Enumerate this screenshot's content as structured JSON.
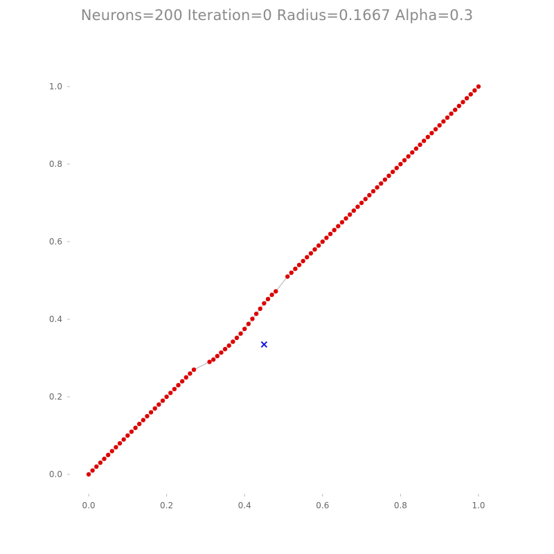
{
  "chart_data": {
    "type": "line",
    "title": "Neurons=200 Iteration=0 Radius=0.1667 Alpha=0.3",
    "xlabel": "",
    "ylabel": "",
    "xlim": [
      -0.05,
      1.05
    ],
    "ylim": [
      -0.05,
      1.05
    ],
    "xticks": [
      0.0,
      0.2,
      0.4,
      0.6,
      0.8,
      1.0
    ],
    "xtick_labels": [
      "0.0",
      "0.2",
      "0.4",
      "0.6",
      "0.8",
      "1.0"
    ],
    "yticks": [
      0.0,
      0.2,
      0.4,
      0.6,
      0.8,
      1.0
    ],
    "ytick_labels": [
      "0.0",
      "0.2",
      "0.4",
      "0.6",
      "0.8",
      "1.0"
    ],
    "grid": false,
    "series": [
      {
        "kind": "neurons",
        "color": "#dd0000",
        "line_color": "#bbbbbb",
        "points": [
          [
            0.0,
            0.0
          ],
          [
            0.01,
            0.01
          ],
          [
            0.02,
            0.02
          ],
          [
            0.03,
            0.03
          ],
          [
            0.04,
            0.04
          ],
          [
            0.05,
            0.05
          ],
          [
            0.06,
            0.06
          ],
          [
            0.07,
            0.07
          ],
          [
            0.08,
            0.08
          ],
          [
            0.09,
            0.09
          ],
          [
            0.1,
            0.1
          ],
          [
            0.11,
            0.11
          ],
          [
            0.12,
            0.12
          ],
          [
            0.13,
            0.13
          ],
          [
            0.14,
            0.14
          ],
          [
            0.15,
            0.15
          ],
          [
            0.16,
            0.16
          ],
          [
            0.17,
            0.17
          ],
          [
            0.18,
            0.18
          ],
          [
            0.19,
            0.19
          ],
          [
            0.2,
            0.2
          ],
          [
            0.21,
            0.21
          ],
          [
            0.22,
            0.22
          ],
          [
            0.23,
            0.23
          ],
          [
            0.24,
            0.24
          ],
          [
            0.25,
            0.25
          ],
          [
            0.26,
            0.26
          ],
          [
            0.27,
            0.27
          ],
          [
            0.31,
            0.29
          ],
          [
            0.32,
            0.296
          ],
          [
            0.33,
            0.305
          ],
          [
            0.34,
            0.314
          ],
          [
            0.35,
            0.323
          ],
          [
            0.36,
            0.332
          ],
          [
            0.37,
            0.342
          ],
          [
            0.38,
            0.352
          ],
          [
            0.39,
            0.363
          ],
          [
            0.4,
            0.375
          ],
          [
            0.41,
            0.388
          ],
          [
            0.42,
            0.401
          ],
          [
            0.43,
            0.414
          ],
          [
            0.44,
            0.427
          ],
          [
            0.45,
            0.441
          ],
          [
            0.46,
            0.452
          ],
          [
            0.47,
            0.463
          ],
          [
            0.48,
            0.472
          ],
          [
            0.51,
            0.51
          ],
          [
            0.52,
            0.52
          ],
          [
            0.53,
            0.53
          ],
          [
            0.54,
            0.54
          ],
          [
            0.55,
            0.55
          ],
          [
            0.56,
            0.56
          ],
          [
            0.57,
            0.57
          ],
          [
            0.58,
            0.58
          ],
          [
            0.59,
            0.59
          ],
          [
            0.6,
            0.6
          ],
          [
            0.61,
            0.61
          ],
          [
            0.62,
            0.62
          ],
          [
            0.63,
            0.63
          ],
          [
            0.64,
            0.64
          ],
          [
            0.65,
            0.65
          ],
          [
            0.66,
            0.66
          ],
          [
            0.67,
            0.67
          ],
          [
            0.68,
            0.68
          ],
          [
            0.69,
            0.69
          ],
          [
            0.7,
            0.7
          ],
          [
            0.71,
            0.71
          ],
          [
            0.72,
            0.72
          ],
          [
            0.73,
            0.73
          ],
          [
            0.74,
            0.74
          ],
          [
            0.75,
            0.75
          ],
          [
            0.76,
            0.76
          ],
          [
            0.77,
            0.77
          ],
          [
            0.78,
            0.78
          ],
          [
            0.79,
            0.79
          ],
          [
            0.8,
            0.8
          ],
          [
            0.81,
            0.81
          ],
          [
            0.82,
            0.82
          ],
          [
            0.83,
            0.83
          ],
          [
            0.84,
            0.84
          ],
          [
            0.85,
            0.85
          ],
          [
            0.86,
            0.86
          ],
          [
            0.87,
            0.87
          ],
          [
            0.88,
            0.88
          ],
          [
            0.89,
            0.89
          ],
          [
            0.9,
            0.9
          ],
          [
            0.91,
            0.91
          ],
          [
            0.92,
            0.92
          ],
          [
            0.93,
            0.93
          ],
          [
            0.94,
            0.94
          ],
          [
            0.95,
            0.95
          ],
          [
            0.96,
            0.96
          ],
          [
            0.97,
            0.97
          ],
          [
            0.98,
            0.98
          ],
          [
            0.99,
            0.99
          ],
          [
            1.0,
            1.0
          ]
        ]
      },
      {
        "kind": "sample",
        "marker": "x",
        "color": "#1515dd",
        "points": [
          [
            0.45,
            0.335
          ]
        ]
      }
    ]
  }
}
